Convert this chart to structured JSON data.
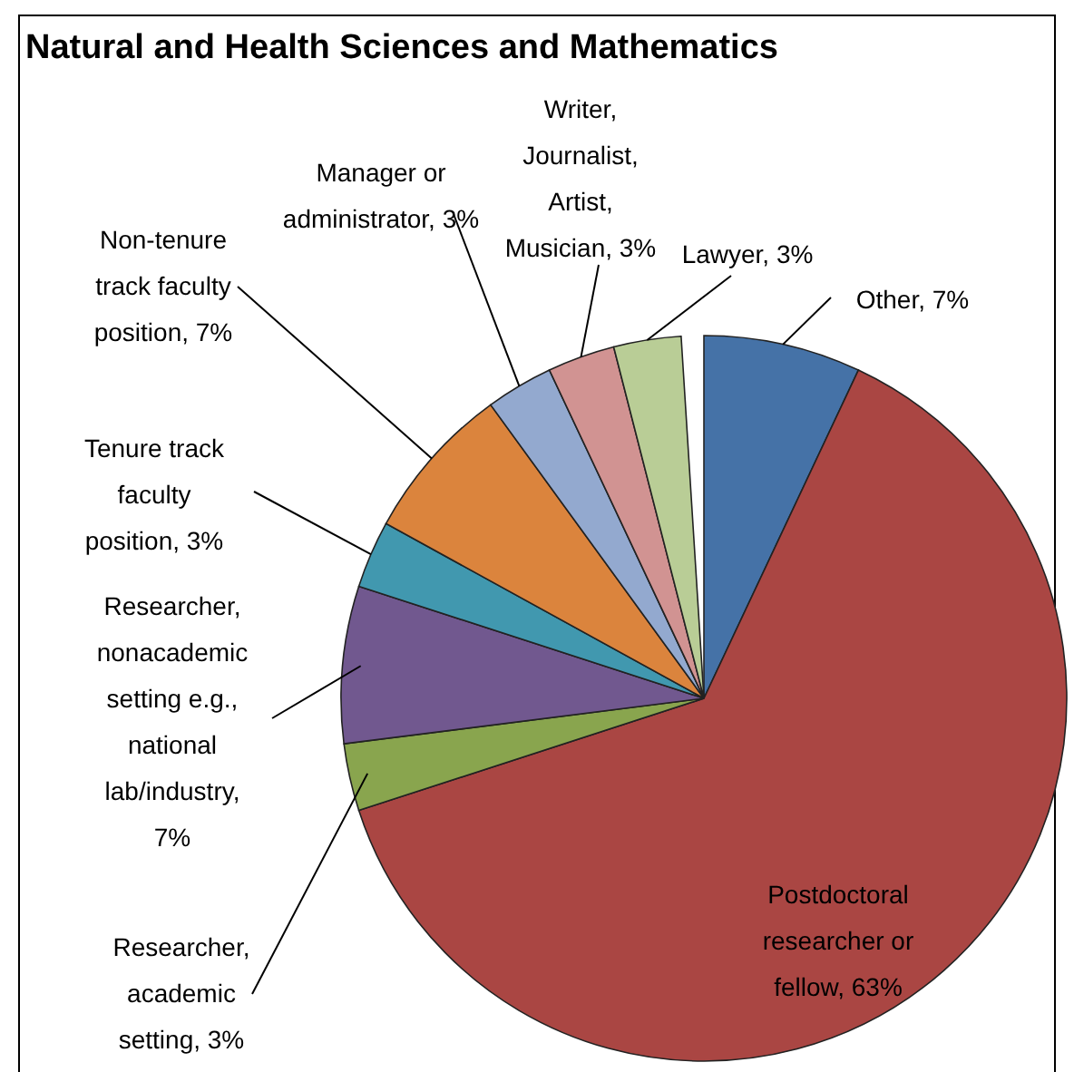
{
  "chart_data": {
    "type": "pie",
    "title": "Natural and Health Sciences and Mathematics",
    "categories": [
      "Other",
      "Postdoctoral researcher or fellow",
      "Researcher, academic setting",
      "Researcher, nonacademic setting e.g., national lab/industry",
      "Tenure track faculty position",
      "Non-tenure track faculty position",
      "Manager or administrator",
      "Writer, Journalist, Artist, Musician",
      "Lawyer"
    ],
    "values": [
      7,
      63,
      3,
      7,
      3,
      7,
      3,
      3,
      3
    ],
    "value_labels": [
      ", 7%",
      ", 63%",
      ", 3%",
      ", 7%",
      ", 3%",
      ", 7%",
      ", 3%",
      ", 3%",
      ", 3%"
    ],
    "colors": [
      "#4572a7",
      "#aa4643",
      "#89a54e",
      "#71588f",
      "#4198af",
      "#db843d",
      "#93a9cf",
      "#d19392",
      "#b9cd96"
    ]
  }
}
